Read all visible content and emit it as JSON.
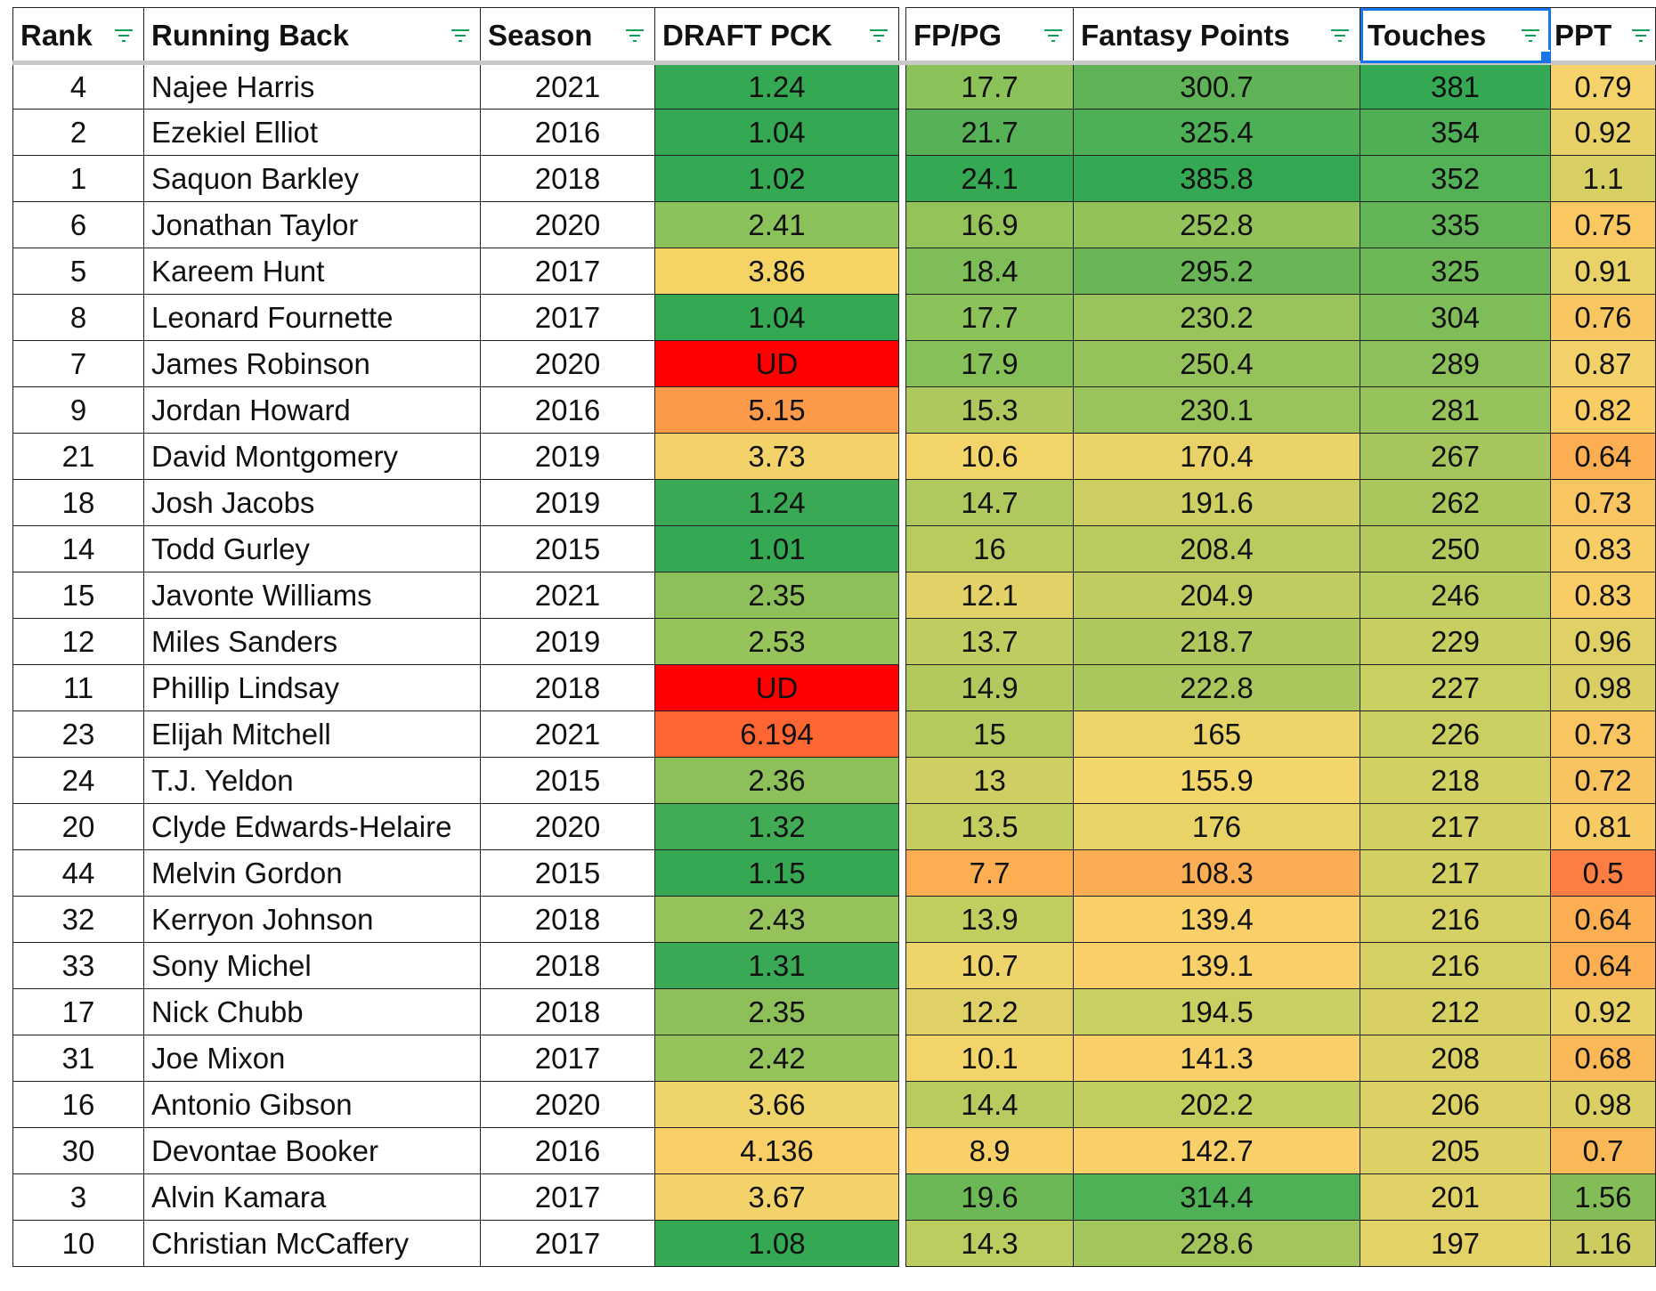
{
  "headers": {
    "rank": "Rank",
    "running_back": "Running Back",
    "season": "Season",
    "draft_pick": "DRAFT PCK",
    "fppg": "FP/PG",
    "fantasy_points": "Fantasy Points",
    "touches": "Touches",
    "ppt": "PPT"
  },
  "colors": {
    "draft": [
      "#34a853",
      "#34a853",
      "#34a853",
      "#8bc35a",
      "#f6d365",
      "#34a853",
      "#ff0000",
      "#fb9b4a",
      "#f3d269",
      "#3aa955",
      "#34a853",
      "#8ec05a",
      "#97c35b",
      "#ff0000",
      "#fd6633",
      "#8ec05a",
      "#42ab55",
      "#36a853",
      "#95c25b",
      "#3aa955",
      "#8ec05a",
      "#94c25b",
      "#efd46a",
      "#f8cf66",
      "#f3d269",
      "#35a853"
    ],
    "fppg": [
      "#8bc35a",
      "#56b157",
      "#34a853",
      "#94c35a",
      "#7fbd58",
      "#8bc35a",
      "#86c059",
      "#aec85d",
      "#f2d469",
      "#b0c95e",
      "#b7cb5e",
      "#e1d166",
      "#c0cc5f",
      "#b3c95e",
      "#b4ca5e",
      "#cdcf62",
      "#c5cd60",
      "#fbae52",
      "#c2cd60",
      "#efd46a",
      "#dfd165",
      "#f3d469",
      "#b7cb5e",
      "#f9d068",
      "#6cb756",
      "#bccc5f"
    ],
    "fantasy_points": [
      "#5fb356",
      "#4eb056",
      "#34a853",
      "#93c25a",
      "#6ab656",
      "#99c35b",
      "#95c25a",
      "#99c35b",
      "#e9d368",
      "#cdcf62",
      "#b9cb5e",
      "#c0cc5f",
      "#afc85d",
      "#a9c75d",
      "#ecd468",
      "#f3d669",
      "#e8d367",
      "#fbad53",
      "#f9d068",
      "#f9d068",
      "#cacf62",
      "#f9cf67",
      "#c2cd60",
      "#f8d067",
      "#4fb155",
      "#a3c65c"
    ],
    "touches": [
      "#34a853",
      "#4eaf55",
      "#53b156",
      "#62b456",
      "#6db757",
      "#7fbd58",
      "#8bc05a",
      "#96c35b",
      "#a4c65c",
      "#a9c75d",
      "#b3c95e",
      "#b7cb5e",
      "#c8ce61",
      "#cacf62",
      "#cbcf62",
      "#d1d063",
      "#d2d063",
      "#d2d063",
      "#d4d064",
      "#d4d064",
      "#d7d164",
      "#dbd165",
      "#ddd165",
      "#ddd165",
      "#e0d266",
      "#e3d266"
    ],
    "ppt": [
      "#f5d36a",
      "#e8d166",
      "#d8cf63",
      "#f9c861",
      "#e9d267",
      "#f9c762",
      "#f1d168",
      "#f9cc64",
      "#fbae52",
      "#f9c561",
      "#f8cd65",
      "#f8cd65",
      "#e0d065",
      "#dbcf64",
      "#f9c561",
      "#f9c360",
      "#f7ca63",
      "#fc7e42",
      "#fbae52",
      "#fbae52",
      "#e8d166",
      "#fbb857",
      "#dbcf64",
      "#fbb856",
      "#84bd58",
      "#cdcc61"
    ]
  },
  "rows": [
    {
      "rank": "4",
      "name": "Najee Harris",
      "season": "2021",
      "draft": "1.24",
      "fppg": "17.7",
      "fp": "300.7",
      "touches": "381",
      "ppt": "0.79"
    },
    {
      "rank": "2",
      "name": "Ezekiel Elliot",
      "season": "2016",
      "draft": "1.04",
      "fppg": "21.7",
      "fp": "325.4",
      "touches": "354",
      "ppt": "0.92"
    },
    {
      "rank": "1",
      "name": "Saquon Barkley",
      "season": "2018",
      "draft": "1.02",
      "fppg": "24.1",
      "fp": "385.8",
      "touches": "352",
      "ppt": "1.1"
    },
    {
      "rank": "6",
      "name": "Jonathan Taylor",
      "season": "2020",
      "draft": "2.41",
      "fppg": "16.9",
      "fp": "252.8",
      "touches": "335",
      "ppt": "0.75"
    },
    {
      "rank": "5",
      "name": "Kareem Hunt",
      "season": "2017",
      "draft": "3.86",
      "fppg": "18.4",
      "fp": "295.2",
      "touches": "325",
      "ppt": "0.91"
    },
    {
      "rank": "8",
      "name": "Leonard Fournette",
      "season": "2017",
      "draft": "1.04",
      "fppg": "17.7",
      "fp": "230.2",
      "touches": "304",
      "ppt": "0.76"
    },
    {
      "rank": "7",
      "name": "James Robinson",
      "season": "2020",
      "draft": "UD",
      "fppg": "17.9",
      "fp": "250.4",
      "touches": "289",
      "ppt": "0.87"
    },
    {
      "rank": "9",
      "name": "Jordan Howard",
      "season": "2016",
      "draft": "5.15",
      "fppg": "15.3",
      "fp": "230.1",
      "touches": "281",
      "ppt": "0.82"
    },
    {
      "rank": "21",
      "name": "David Montgomery",
      "season": "2019",
      "draft": "3.73",
      "fppg": "10.6",
      "fp": "170.4",
      "touches": "267",
      "ppt": "0.64"
    },
    {
      "rank": "18",
      "name": "Josh Jacobs",
      "season": "2019",
      "draft": "1.24",
      "fppg": "14.7",
      "fp": "191.6",
      "touches": "262",
      "ppt": "0.73"
    },
    {
      "rank": "14",
      "name": "Todd Gurley",
      "season": "2015",
      "draft": "1.01",
      "fppg": "16",
      "fp": "208.4",
      "touches": "250",
      "ppt": "0.83"
    },
    {
      "rank": "15",
      "name": "Javonte Williams",
      "season": "2021",
      "draft": "2.35",
      "fppg": "12.1",
      "fp": "204.9",
      "touches": "246",
      "ppt": "0.83"
    },
    {
      "rank": "12",
      "name": "Miles Sanders",
      "season": "2019",
      "draft": "2.53",
      "fppg": "13.7",
      "fp": "218.7",
      "touches": "229",
      "ppt": "0.96"
    },
    {
      "rank": "11",
      "name": "Phillip Lindsay",
      "season": "2018",
      "draft": "UD",
      "fppg": "14.9",
      "fp": "222.8",
      "touches": "227",
      "ppt": "0.98"
    },
    {
      "rank": "23",
      "name": "Elijah Mitchell",
      "season": "2021",
      "draft": "6.194",
      "fppg": "15",
      "fp": "165",
      "touches": "226",
      "ppt": "0.73"
    },
    {
      "rank": "24",
      "name": "T.J. Yeldon",
      "season": "2015",
      "draft": "2.36",
      "fppg": "13",
      "fp": "155.9",
      "touches": "218",
      "ppt": "0.72"
    },
    {
      "rank": "20",
      "name": "Clyde Edwards-Helaire",
      "season": "2020",
      "draft": "1.32",
      "fppg": "13.5",
      "fp": "176",
      "touches": "217",
      "ppt": "0.81"
    },
    {
      "rank": "44",
      "name": "Melvin Gordon",
      "season": "2015",
      "draft": "1.15",
      "fppg": "7.7",
      "fp": "108.3",
      "touches": "217",
      "ppt": "0.5"
    },
    {
      "rank": "32",
      "name": "Kerryon Johnson",
      "season": "2018",
      "draft": "2.43",
      "fppg": "13.9",
      "fp": "139.4",
      "touches": "216",
      "ppt": "0.64"
    },
    {
      "rank": "33",
      "name": "Sony Michel",
      "season": "2018",
      "draft": "1.31",
      "fppg": "10.7",
      "fp": "139.1",
      "touches": "216",
      "ppt": "0.64"
    },
    {
      "rank": "17",
      "name": "Nick Chubb",
      "season": "2018",
      "draft": "2.35",
      "fppg": "12.2",
      "fp": "194.5",
      "touches": "212",
      "ppt": "0.92"
    },
    {
      "rank": "31",
      "name": "Joe Mixon",
      "season": "2017",
      "draft": "2.42",
      "fppg": "10.1",
      "fp": "141.3",
      "touches": "208",
      "ppt": "0.68"
    },
    {
      "rank": "16",
      "name": "Antonio Gibson",
      "season": "2020",
      "draft": "3.66",
      "fppg": "14.4",
      "fp": "202.2",
      "touches": "206",
      "ppt": "0.98"
    },
    {
      "rank": "30",
      "name": "Devontae Booker",
      "season": "2016",
      "draft": "4.136",
      "fppg": "8.9",
      "fp": "142.7",
      "touches": "205",
      "ppt": "0.7"
    },
    {
      "rank": "3",
      "name": "Alvin Kamara",
      "season": "2017",
      "draft": "3.67",
      "fppg": "19.6",
      "fp": "314.4",
      "touches": "201",
      "ppt": "1.56"
    },
    {
      "rank": "10",
      "name": "Christian McCaffery",
      "season": "2017",
      "draft": "1.08",
      "fppg": "14.3",
      "fp": "228.6",
      "touches": "197",
      "ppt": "1.16"
    }
  ]
}
